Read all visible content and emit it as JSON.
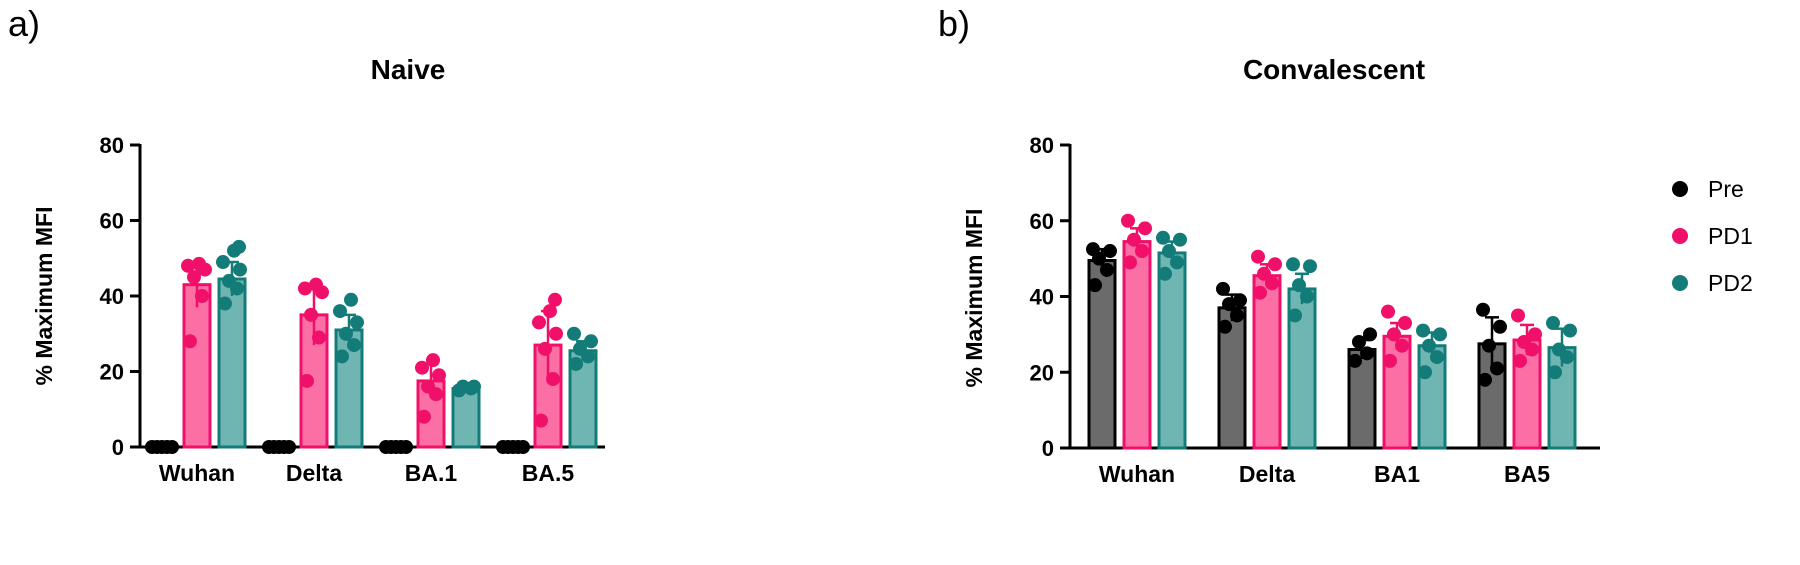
{
  "chart_data": [
    {
      "panel_label": "a)",
      "type": "bar",
      "title": "Naive",
      "xlabel": "",
      "ylabel": "% Maximum MFI",
      "ylim": [
        0,
        80
      ],
      "yticks": [
        0,
        20,
        40,
        60,
        80
      ],
      "grid": false,
      "categories": [
        "Wuhan",
        "Delta",
        "BA.1",
        "BA.5"
      ],
      "series": [
        {
          "name": "Pre",
          "values": [
            0,
            0,
            0,
            0
          ],
          "errors": [
            0,
            0,
            0,
            0
          ],
          "points": [
            [
              0,
              0,
              0,
              0,
              0
            ],
            [
              0,
              0,
              0,
              0,
              0
            ],
            [
              0,
              0,
              0,
              0,
              0
            ],
            [
              0,
              0,
              0,
              0,
              0
            ]
          ]
        },
        {
          "name": "PD1",
          "values": [
            43,
            35,
            17.5,
            27
          ],
          "errors": [
            6,
            8,
            4.5,
            9
          ],
          "points": [
            [
              28,
              40,
              45,
              47,
              48,
              48.5
            ],
            [
              17.5,
              29,
              35,
              41,
              42,
              43
            ],
            [
              8,
              14,
              16,
              19,
              21,
              23
            ],
            [
              7,
              18,
              26,
              30,
              33,
              36,
              39
            ]
          ]
        },
        {
          "name": "PD2",
          "values": [
            44.5,
            31,
            15.5,
            25.5
          ],
          "errors": [
            4.5,
            4,
            0.7,
            2.5
          ],
          "points": [
            [
              38,
              42,
              44,
              47,
              49,
              52,
              53
            ],
            [
              24,
              27,
              30,
              33,
              36,
              39
            ],
            [
              15,
              15.5,
              16,
              16
            ],
            [
              22,
              24,
              26,
              28,
              30
            ]
          ]
        }
      ],
      "legend": "none"
    },
    {
      "panel_label": "b)",
      "type": "bar",
      "title": "Convalescent",
      "xlabel": "",
      "ylabel": "% Maximum MFI",
      "ylim": [
        0,
        80
      ],
      "yticks": [
        0,
        20,
        40,
        60,
        80
      ],
      "grid": false,
      "categories": [
        "Wuhan",
        "Delta",
        "BA1",
        "BA5"
      ],
      "series": [
        {
          "name": "Pre",
          "values": [
            49.5,
            37,
            26,
            27.5
          ],
          "errors": [
            3,
            3.5,
            2.5,
            7
          ],
          "points": [
            [
              43,
              47,
              50,
              52,
              52.5
            ],
            [
              32,
              35,
              38,
              39,
              42
            ],
            [
              23,
              25,
              28,
              30
            ],
            [
              18,
              21,
              27,
              32,
              36.5
            ]
          ]
        },
        {
          "name": "PD1",
          "values": [
            54.5,
            45.5,
            29.5,
            28.5
          ],
          "errors": [
            3.5,
            3,
            3.5,
            4
          ],
          "points": [
            [
              49,
              52,
              55,
              58,
              60
            ],
            [
              41,
              43.5,
              46,
              48.5,
              50.5
            ],
            [
              23,
              27,
              30,
              33,
              36
            ],
            [
              23,
              26,
              28,
              30,
              35
            ]
          ]
        },
        {
          "name": "PD2",
          "values": [
            51.5,
            42,
            27,
            26.5
          ],
          "errors": [
            3,
            4,
            3.5,
            5
          ],
          "points": [
            [
              46,
              49,
              52,
              55,
              55.5
            ],
            [
              35,
              40,
              43,
              48,
              48.5
            ],
            [
              20,
              24,
              27,
              30,
              31
            ],
            [
              20,
              24,
              26,
              31,
              33
            ]
          ]
        }
      ],
      "legend": "right"
    }
  ],
  "legend": {
    "items": [
      "Pre",
      "PD1",
      "PD2"
    ],
    "colors": {
      "Pre": {
        "fill": "#6b6b6b",
        "stroke": "#000000"
      },
      "PD1": {
        "fill": "#fb6fa5",
        "stroke": "#f0106a"
      },
      "PD2": {
        "fill": "#6fb5b2",
        "stroke": "#137c78"
      }
    }
  }
}
